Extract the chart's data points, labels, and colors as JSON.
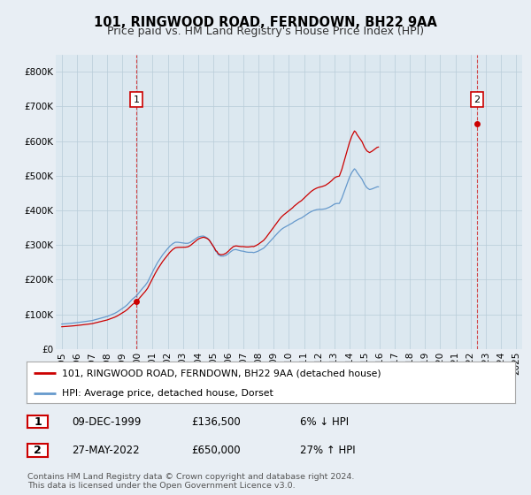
{
  "title": "101, RINGWOOD ROAD, FERNDOWN, BH22 9AA",
  "subtitle": "Price paid vs. HM Land Registry's House Price Index (HPI)",
  "ylim": [
    0,
    850000
  ],
  "yticks": [
    0,
    100000,
    200000,
    300000,
    400000,
    500000,
    600000,
    700000,
    800000
  ],
  "ytick_labels": [
    "£0",
    "£100K",
    "£200K",
    "£300K",
    "£400K",
    "£500K",
    "£600K",
    "£700K",
    "£800K"
  ],
  "legend_label_red": "101, RINGWOOD ROAD, FERNDOWN, BH22 9AA (detached house)",
  "legend_label_blue": "HPI: Average price, detached house, Dorset",
  "red_color": "#cc0000",
  "blue_color": "#6699cc",
  "point1_label": "1",
  "point1_date": "09-DEC-1999",
  "point1_price": "£136,500",
  "point1_hpi": "6% ↓ HPI",
  "point2_label": "2",
  "point2_date": "27-MAY-2022",
  "point2_price": "£650,000",
  "point2_hpi": "27% ↑ HPI",
  "footnote1": "Contains HM Land Registry data © Crown copyright and database right 2024.",
  "footnote2": "This data is licensed under the Open Government Licence v3.0.",
  "background_color": "#e8eef4",
  "plot_bg_color": "#dce8f0",
  "grid_color": "#b8ccd8",
  "title_fontsize": 10.5,
  "subtitle_fontsize": 9,
  "tick_fontsize": 7.5,
  "sale1_year": 1999.92,
  "sale1_price": 136500,
  "sale2_year": 2022.42,
  "sale2_price": 650000,
  "xtick_years": [
    1995,
    1996,
    1997,
    1998,
    1999,
    2000,
    2001,
    2002,
    2003,
    2004,
    2005,
    2006,
    2007,
    2008,
    2009,
    2010,
    2011,
    2012,
    2013,
    2014,
    2015,
    2016,
    2017,
    2018,
    2019,
    2020,
    2021,
    2022,
    2023,
    2024,
    2025
  ],
  "hpi_values_monthly": [
    72000,
    72200,
    72500,
    72800,
    73100,
    73400,
    73700,
    74000,
    74400,
    74800,
    75200,
    75600,
    76000,
    76500,
    77000,
    77500,
    78000,
    78500,
    79000,
    79500,
    80000,
    80500,
    81000,
    81500,
    82000,
    83000,
    84000,
    85000,
    86000,
    87000,
    88000,
    89000,
    90000,
    91000,
    92000,
    93000,
    94000,
    95500,
    97000,
    98500,
    100000,
    101500,
    103000,
    105000,
    107000,
    109500,
    112000,
    114500,
    117000,
    119500,
    122000,
    125000,
    128000,
    132000,
    136000,
    140000,
    144000,
    147000,
    150000,
    153000,
    157000,
    161500,
    166000,
    170500,
    175000,
    179000,
    183000,
    188000,
    193000,
    200500,
    208000,
    215500,
    223000,
    230000,
    237000,
    243500,
    250000,
    255500,
    261000,
    266500,
    272000,
    276500,
    281000,
    285500,
    290000,
    294000,
    298000,
    301000,
    304000,
    306000,
    308000,
    308000,
    308000,
    307500,
    307000,
    306500,
    306000,
    305500,
    305000,
    305000,
    305000,
    306500,
    308000,
    310500,
    313000,
    315500,
    318000,
    320500,
    323000,
    324000,
    325000,
    325500,
    326000,
    325000,
    323000,
    321000,
    318000,
    314000,
    308000,
    302000,
    296000,
    290000,
    282000,
    279000,
    272000,
    270000,
    268000,
    268000,
    268000,
    269000,
    270000,
    272500,
    275000,
    278000,
    281000,
    283500,
    286000,
    286500,
    287000,
    286000,
    285000,
    284000,
    283000,
    282500,
    282000,
    281000,
    280000,
    279500,
    279000,
    279000,
    279000,
    279000,
    278000,
    279000,
    280000,
    281500,
    283000,
    285000,
    287000,
    289000,
    291000,
    294500,
    298000,
    302000,
    306000,
    310000,
    314000,
    318000,
    322000,
    326000,
    330000,
    334000,
    338000,
    341500,
    345000,
    347500,
    350000,
    352000,
    354000,
    356000,
    358000,
    360000,
    362000,
    364000,
    367000,
    369000,
    371000,
    373000,
    375000,
    376500,
    378000,
    380500,
    383000,
    385500,
    388000,
    390500,
    393000,
    395000,
    397000,
    398500,
    400000,
    401000,
    402000,
    402500,
    403000,
    403000,
    403000,
    403500,
    404000,
    404500,
    406000,
    407500,
    409000,
    411000,
    413000,
    415500,
    418000,
    419000,
    420000,
    420000,
    420000,
    427500,
    435000,
    445000,
    455000,
    465000,
    475000,
    485000,
    495000,
    502500,
    510000,
    515000,
    520000,
    516500,
    510000,
    505000,
    500000,
    495000,
    490000,
    482500,
    475000,
    470000,
    465000,
    462500,
    460000,
    461000,
    462000,
    463500,
    465000,
    466500,
    468000,
    468000
  ]
}
